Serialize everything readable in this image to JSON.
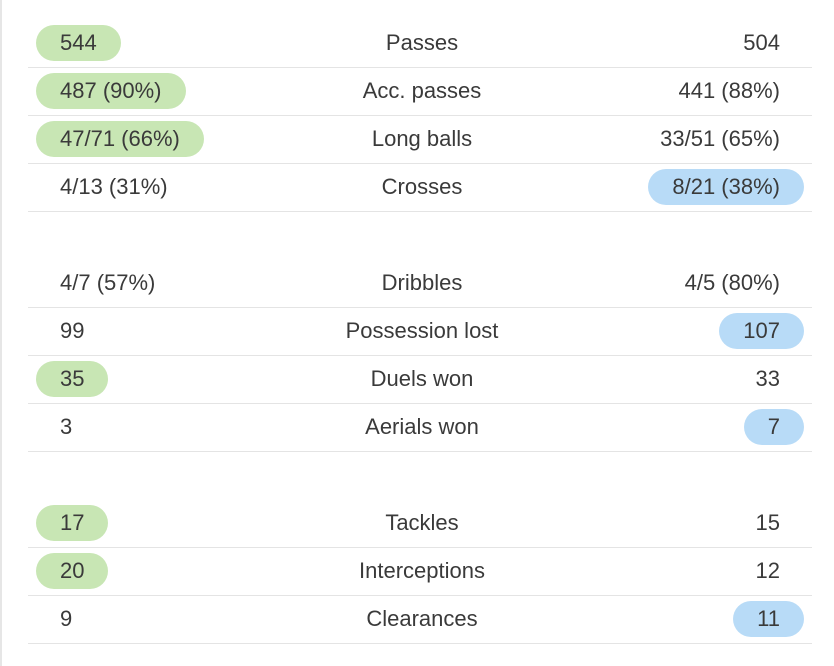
{
  "colors": {
    "home_highlight": "#c8e6b4",
    "away_highlight": "#b8dbf7"
  },
  "groups": [
    {
      "rows": [
        {
          "label": "Passes",
          "home": "544",
          "away": "504",
          "winner": "home"
        },
        {
          "label": "Acc. passes",
          "home": "487 (90%)",
          "away": "441 (88%)",
          "winner": "home"
        },
        {
          "label": "Long balls",
          "home": "47/71 (66%)",
          "away": "33/51 (65%)",
          "winner": "home"
        },
        {
          "label": "Crosses",
          "home": "4/13 (31%)",
          "away": "8/21 (38%)",
          "winner": "away"
        }
      ]
    },
    {
      "rows": [
        {
          "label": "Dribbles",
          "home": "4/7 (57%)",
          "away": "4/5 (80%)",
          "winner": "none"
        },
        {
          "label": "Possession lost",
          "home": "99",
          "away": "107",
          "winner": "away"
        },
        {
          "label": "Duels won",
          "home": "35",
          "away": "33",
          "winner": "home"
        },
        {
          "label": "Aerials won",
          "home": "3",
          "away": "7",
          "winner": "away"
        }
      ]
    },
    {
      "rows": [
        {
          "label": "Tackles",
          "home": "17",
          "away": "15",
          "winner": "home"
        },
        {
          "label": "Interceptions",
          "home": "20",
          "away": "12",
          "winner": "home"
        },
        {
          "label": "Clearances",
          "home": "9",
          "away": "11",
          "winner": "away"
        }
      ]
    }
  ]
}
